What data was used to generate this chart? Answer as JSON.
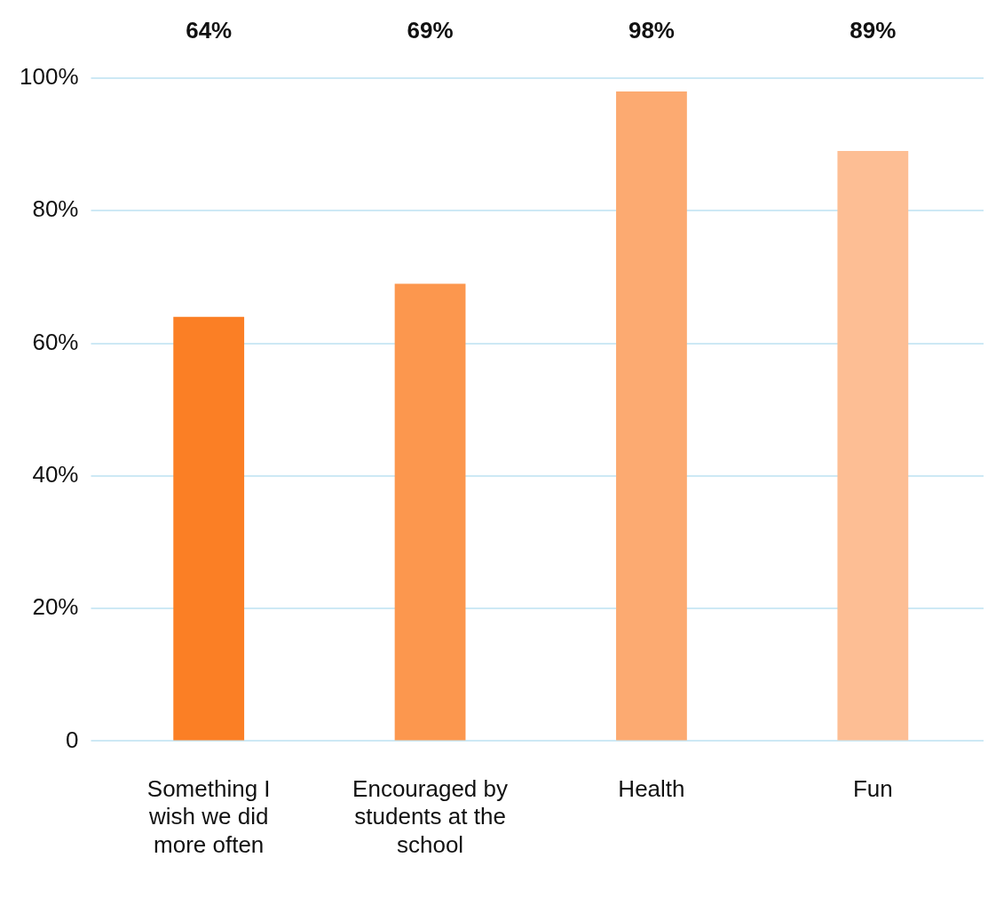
{
  "chart_data": {
    "type": "bar",
    "categories": [
      "Something I wish we did more often",
      "Encouraged by students at the school",
      "Health",
      "Fun"
    ],
    "values": [
      64,
      69,
      98,
      89
    ],
    "colors": [
      "#fb7f25",
      "#fc974e",
      "#fcaa71",
      "#fdbe94"
    ],
    "value_labels": [
      "64%",
      "69%",
      "98%",
      "89%"
    ],
    "ylim": [
      0,
      100
    ],
    "yticks": [
      0,
      {
        "value": 20,
        "label": "20%"
      },
      {
        "value": 40,
        "label": "40%"
      },
      {
        "value": 60,
        "label": "60%"
      },
      {
        "value": 80,
        "label": "80%"
      },
      {
        "value": 100,
        "label": "100%"
      }
    ],
    "grid": "y",
    "legend": false
  }
}
